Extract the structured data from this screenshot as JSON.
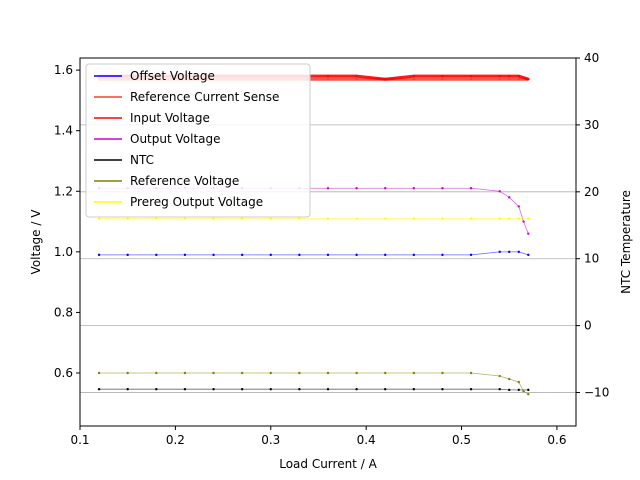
{
  "chart_data": {
    "type": "line",
    "xlabel": "Load Current / A",
    "ylabel": "Voltage / V",
    "y2label": "NTC Temperature",
    "xlim": [
      0.1,
      0.62
    ],
    "ylim": [
      0.425,
      1.64
    ],
    "y2lim": [
      -15,
      40
    ],
    "xticks": [
      "0.1",
      "0.2",
      "0.3",
      "0.4",
      "0.5",
      "0.6"
    ],
    "yticks": [
      "0.6",
      "0.8",
      "1.0",
      "1.2",
      "1.4",
      "1.6"
    ],
    "y2ticks": [
      "−10",
      "0",
      "10",
      "20",
      "30",
      "40"
    ],
    "grid": "right-axis horizontal",
    "legend_position": "top-left",
    "series": [
      {
        "name": "Offset Voltage",
        "color": "#0000ff",
        "axis": "left",
        "x": [
          0.12,
          0.15,
          0.18,
          0.21,
          0.24,
          0.27,
          0.3,
          0.33,
          0.36,
          0.39,
          0.42,
          0.45,
          0.48,
          0.51,
          0.54,
          0.55,
          0.56,
          0.57
        ],
        "y": [
          0.99,
          0.99,
          0.99,
          0.99,
          0.99,
          0.99,
          0.99,
          0.99,
          0.99,
          0.99,
          0.99,
          0.99,
          0.99,
          0.99,
          1.0,
          1.0,
          1.0,
          0.99
        ]
      },
      {
        "name": "Reference Current Sense",
        "color": "#f44336",
        "axis": "left",
        "x": [
          0.12,
          0.15,
          0.18,
          0.21,
          0.24,
          0.27,
          0.3,
          0.33,
          0.36,
          0.39,
          0.42,
          0.45,
          0.48,
          0.51,
          0.54,
          0.55,
          0.56,
          0.57
        ],
        "y": [
          1.57,
          1.57,
          1.57,
          1.57,
          1.57,
          1.57,
          1.57,
          1.57,
          1.57,
          1.57,
          1.57,
          1.57,
          1.57,
          1.57,
          1.57,
          1.57,
          1.57,
          1.57
        ]
      },
      {
        "name": "Input Voltage",
        "color": "#ff0000",
        "axis": "left",
        "x": [
          0.12,
          0.15,
          0.18,
          0.21,
          0.24,
          0.27,
          0.3,
          0.33,
          0.36,
          0.39,
          0.42,
          0.45,
          0.48,
          0.51,
          0.54,
          0.55,
          0.56,
          0.57
        ],
        "y": [
          1.58,
          1.58,
          1.58,
          1.58,
          1.58,
          1.58,
          1.58,
          1.58,
          1.58,
          1.58,
          1.57,
          1.58,
          1.58,
          1.58,
          1.58,
          1.58,
          1.58,
          1.57
        ]
      },
      {
        "name": "Output Voltage",
        "color": "#cc00cc",
        "axis": "left",
        "x": [
          0.12,
          0.15,
          0.18,
          0.21,
          0.24,
          0.27,
          0.3,
          0.33,
          0.36,
          0.39,
          0.42,
          0.45,
          0.48,
          0.51,
          0.54,
          0.55,
          0.56,
          0.565,
          0.57
        ],
        "y": [
          1.21,
          1.21,
          1.21,
          1.21,
          1.21,
          1.21,
          1.21,
          1.21,
          1.21,
          1.21,
          1.21,
          1.21,
          1.21,
          1.21,
          1.2,
          1.18,
          1.15,
          1.1,
          1.06
        ]
      },
      {
        "name": "NTC",
        "color": "#000000",
        "axis": "right",
        "x": [
          0.12,
          0.15,
          0.18,
          0.21,
          0.24,
          0.27,
          0.3,
          0.33,
          0.36,
          0.39,
          0.42,
          0.45,
          0.48,
          0.51,
          0.54,
          0.55,
          0.56,
          0.57
        ],
        "y": [
          -9.5,
          -9.5,
          -9.5,
          -9.5,
          -9.5,
          -9.5,
          -9.5,
          -9.5,
          -9.5,
          -9.5,
          -9.5,
          -9.5,
          -9.5,
          -9.5,
          -9.5,
          -9.6,
          -9.6,
          -9.6
        ]
      },
      {
        "name": "Reference Voltage",
        "color": "#808000",
        "axis": "left",
        "x": [
          0.12,
          0.15,
          0.18,
          0.21,
          0.24,
          0.27,
          0.3,
          0.33,
          0.36,
          0.39,
          0.42,
          0.45,
          0.48,
          0.51,
          0.54,
          0.55,
          0.56,
          0.565,
          0.57
        ],
        "y": [
          0.6,
          0.6,
          0.6,
          0.6,
          0.6,
          0.6,
          0.6,
          0.6,
          0.6,
          0.6,
          0.6,
          0.6,
          0.6,
          0.6,
          0.59,
          0.58,
          0.57,
          0.54,
          0.53
        ]
      },
      {
        "name": "Prereg Output Voltage",
        "color": "#ffff00",
        "axis": "left",
        "x": [
          0.12,
          0.15,
          0.18,
          0.21,
          0.24,
          0.27,
          0.3,
          0.33,
          0.36,
          0.39,
          0.42,
          0.45,
          0.48,
          0.51,
          0.54,
          0.55,
          0.56,
          0.57
        ],
        "y": [
          1.11,
          1.11,
          1.11,
          1.11,
          1.11,
          1.11,
          1.11,
          1.11,
          1.11,
          1.11,
          1.11,
          1.11,
          1.11,
          1.11,
          1.11,
          1.11,
          1.11,
          1.11
        ]
      }
    ]
  }
}
